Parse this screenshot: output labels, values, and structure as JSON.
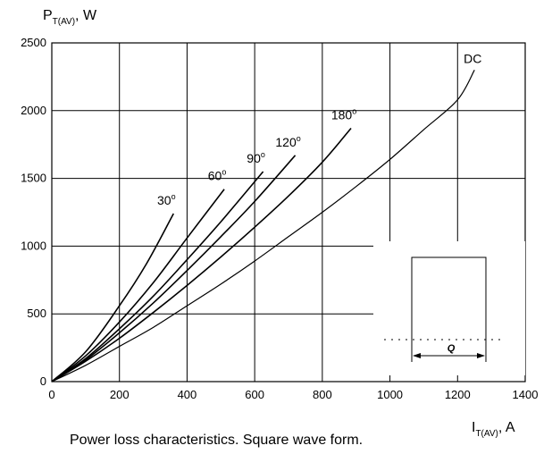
{
  "chart_data": {
    "type": "line",
    "caption": "Power loss characteristics. Square wave form.",
    "y_axis": {
      "symbol": "P",
      "subscript": "T(AV)",
      "unit": ", W",
      "min": 0,
      "max": 2500,
      "ticks": [
        0,
        500,
        1000,
        1500,
        2000,
        2500
      ]
    },
    "x_axis": {
      "symbol": "I",
      "subscript": "T(AV)",
      "unit": ", A",
      "min": 0,
      "max": 1400,
      "ticks": [
        0,
        200,
        400,
        600,
        800,
        1000,
        1200,
        1400
      ]
    },
    "grid": true,
    "series": [
      {
        "label": "30",
        "superscript": "o",
        "x": [
          0,
          100,
          200,
          280,
          360
        ],
        "y": [
          0,
          220,
          560,
          870,
          1240
        ]
      },
      {
        "label": "60",
        "superscript": "o",
        "x": [
          0,
          100,
          200,
          300,
          400,
          510
        ],
        "y": [
          0,
          190,
          440,
          730,
          1060,
          1420
        ]
      },
      {
        "label": "90",
        "superscript": "o",
        "x": [
          0,
          100,
          200,
          300,
          400,
          500,
          625
        ],
        "y": [
          0,
          170,
          390,
          630,
          900,
          1180,
          1550
        ]
      },
      {
        "label": "120",
        "superscript": "o",
        "x": [
          0,
          100,
          200,
          300,
          400,
          500,
          600,
          720
        ],
        "y": [
          0,
          160,
          360,
          580,
          820,
          1070,
          1330,
          1670
        ]
      },
      {
        "label": "180",
        "superscript": "o",
        "x": [
          0,
          100,
          200,
          300,
          400,
          500,
          600,
          700,
          800,
          885
        ],
        "y": [
          0,
          150,
          320,
          510,
          710,
          920,
          1140,
          1370,
          1620,
          1870
        ]
      },
      {
        "label": "DC",
        "superscript": "",
        "x": [
          0,
          100,
          200,
          300,
          400,
          500,
          600,
          700,
          800,
          900,
          1000,
          1100,
          1200,
          1250
        ],
        "y": [
          0,
          120,
          260,
          400,
          560,
          720,
          890,
          1070,
          1250,
          1440,
          1640,
          1860,
          2080,
          2300
        ]
      }
    ],
    "inset": {
      "dimension_label": "Q"
    }
  }
}
